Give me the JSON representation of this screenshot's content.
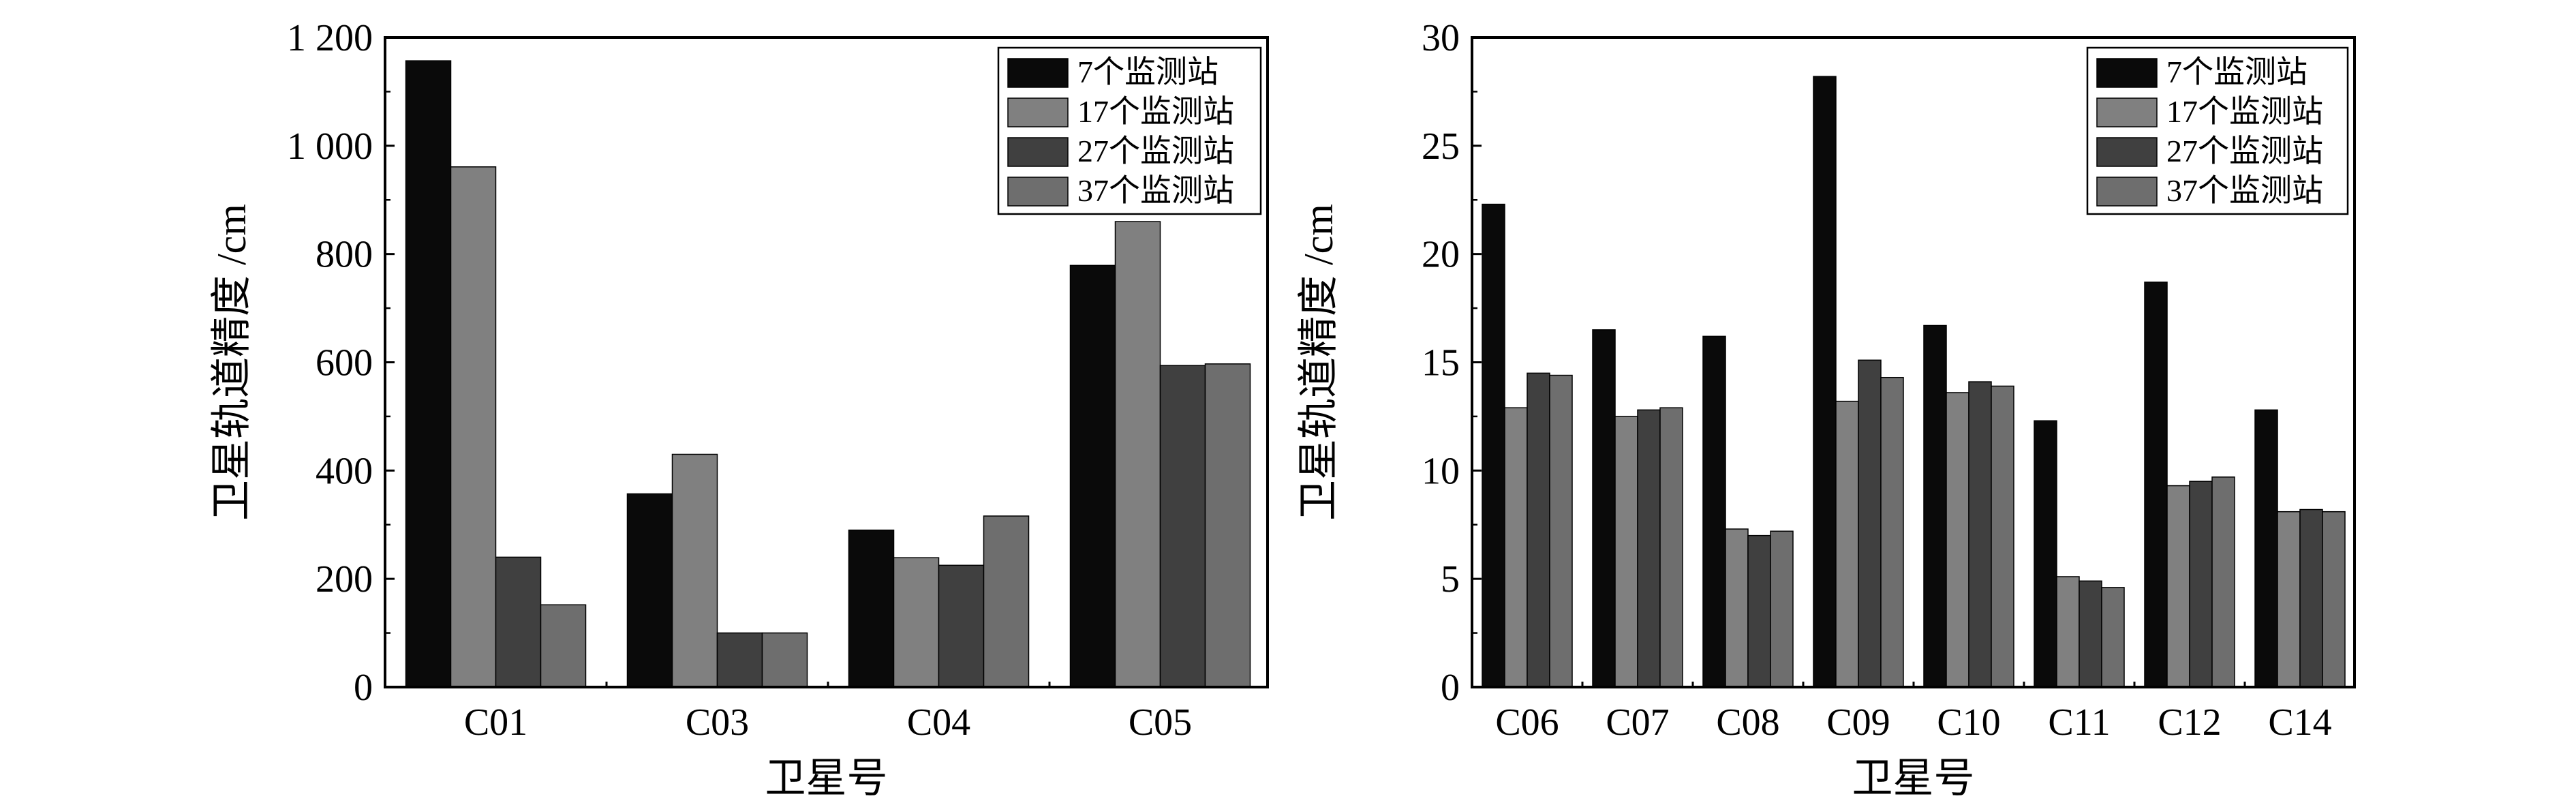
{
  "colors": {
    "background": "#ffffff",
    "axis": "#000000",
    "series": [
      "#0a0a0a",
      "#808080",
      "#404040",
      "#6e6e6e"
    ]
  },
  "chart_data": [
    {
      "type": "bar",
      "title": "",
      "xlabel": "卫星号",
      "ylabel": "卫星轨道精度 /cm",
      "ylim": [
        0,
        1200
      ],
      "yticks": [
        0,
        200,
        400,
        600,
        800,
        1000,
        1200
      ],
      "ytick_labels": [
        "0",
        "200",
        "400",
        "600",
        "800",
        "1 000",
        "1 200"
      ],
      "grid": false,
      "legend": "top-right",
      "categories": [
        "C01",
        "C03",
        "C04",
        "C05"
      ],
      "series": [
        {
          "name": "7个监测站",
          "values": [
            1157,
            357,
            290,
            779
          ]
        },
        {
          "name": "17个监测站",
          "values": [
            961,
            430,
            239,
            860
          ]
        },
        {
          "name": "27个监测站",
          "values": [
            240,
            100,
            225,
            594
          ]
        },
        {
          "name": "37个监测站",
          "values": [
            152,
            100,
            316,
            597
          ]
        }
      ]
    },
    {
      "type": "bar",
      "title": "",
      "xlabel": "卫星号",
      "ylabel": "卫星轨道精度 /cm",
      "ylim": [
        0,
        30
      ],
      "yticks": [
        0,
        5,
        10,
        15,
        20,
        25,
        30
      ],
      "ytick_labels": [
        "0",
        "5",
        "10",
        "15",
        "20",
        "25",
        "30"
      ],
      "grid": false,
      "legend": "top-right",
      "categories": [
        "C06",
        "C07",
        "C08",
        "C09",
        "C10",
        "C11",
        "C12",
        "C14"
      ],
      "series": [
        {
          "name": "7个监测站",
          "values": [
            22.3,
            16.5,
            16.2,
            28.2,
            16.7,
            12.3,
            18.7,
            12.8
          ]
        },
        {
          "name": "17个监测站",
          "values": [
            12.9,
            12.5,
            7.3,
            13.2,
            13.6,
            5.1,
            9.3,
            8.1
          ]
        },
        {
          "name": "27个监测站",
          "values": [
            14.5,
            12.8,
            7.0,
            15.1,
            14.1,
            4.9,
            9.5,
            8.2
          ]
        },
        {
          "name": "37个监测站",
          "values": [
            14.4,
            12.9,
            7.2,
            14.3,
            13.9,
            4.6,
            9.7,
            8.1
          ]
        }
      ]
    }
  ]
}
